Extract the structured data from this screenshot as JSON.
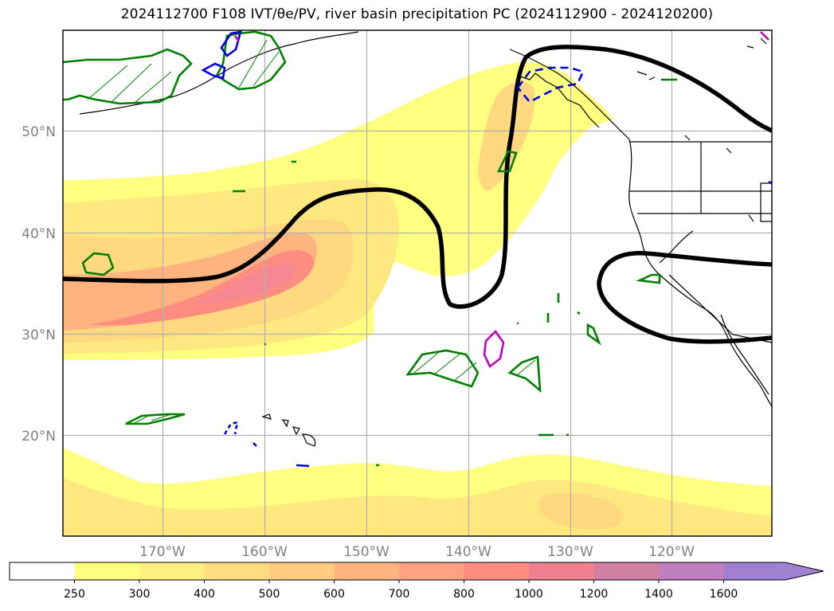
{
  "title": "2024112700 F108 IVT/θe/PV, river basin precipitation PC (2024112900 - 2024120200)",
  "map": {
    "lon_ticks": [
      "170°W",
      "160°W",
      "150°W",
      "140°W",
      "130°W",
      "120°W"
    ],
    "lat_ticks": [
      "50°N",
      "40°N",
      "30°N",
      "20°N"
    ],
    "ivt_colors": [
      "#ffffff",
      "#ffff80",
      "#ffee80",
      "#ffdc80",
      "#ffcc80",
      "#ffb480",
      "#ffa080",
      "#ff8c80",
      "#f08090",
      "#d080a0",
      "#c080c0",
      "#a080d0"
    ]
  },
  "colorbar": {
    "labels": [
      "250",
      "300",
      "400",
      "500",
      "600",
      "700",
      "800",
      "1000",
      "1200",
      "1400",
      "1600"
    ],
    "colors": [
      "#ffffff",
      "#ffff80",
      "#ffee80",
      "#ffdc80",
      "#ffcc80",
      "#ffb480",
      "#ffa080",
      "#ff8c80",
      "#f08090",
      "#d080a0",
      "#c080c0",
      "#a080d0"
    ]
  }
}
